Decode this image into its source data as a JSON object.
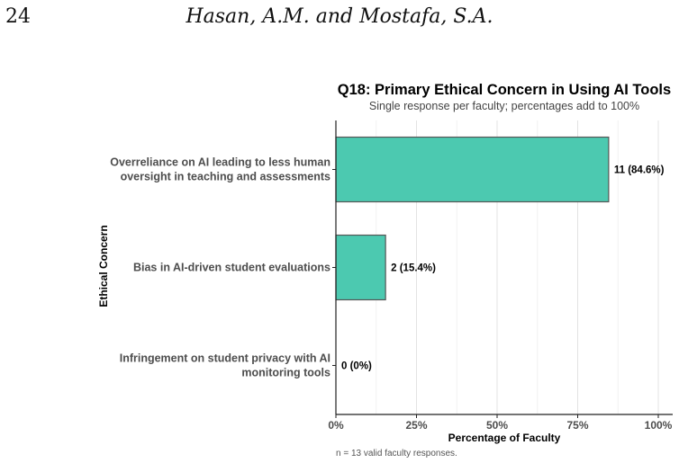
{
  "page": {
    "number": "24",
    "running_head": "Hasan, A.M. and Mostafa, S.A."
  },
  "colors": {
    "bar_fill": "#4cc9b0",
    "bar_stroke": "#555555",
    "grid": "#e3e3e3",
    "axis": "#222222"
  },
  "chart_data": {
    "type": "bar",
    "orientation": "horizontal",
    "title": "Q18: Primary Ethical Concern in Using AI Tools",
    "subtitle": "Single response per faculty; percentages add to 100%",
    "xlabel": "Percentage of Faculty",
    "ylabel": "Ethical Concern",
    "caption": "n = 13 valid faculty responses.",
    "xlim": [
      0,
      100
    ],
    "xticks": [
      0,
      25,
      50,
      75,
      100
    ],
    "xtick_labels": [
      "0%",
      "25%",
      "50%",
      "75%",
      "100%"
    ],
    "grid": true,
    "categories": [
      [
        "Overreliance on AI leading to less human",
        "oversight in teaching and assessments"
      ],
      [
        "Bias in AI-driven student evaluations"
      ],
      [
        "Infringement on student privacy with AI",
        "monitoring tools"
      ]
    ],
    "values": [
      84.6,
      15.4,
      0
    ],
    "counts": [
      11,
      2,
      0
    ],
    "data_labels": [
      "11 (84.6%)",
      "2 (15.4%)",
      "0 (0%)"
    ]
  }
}
